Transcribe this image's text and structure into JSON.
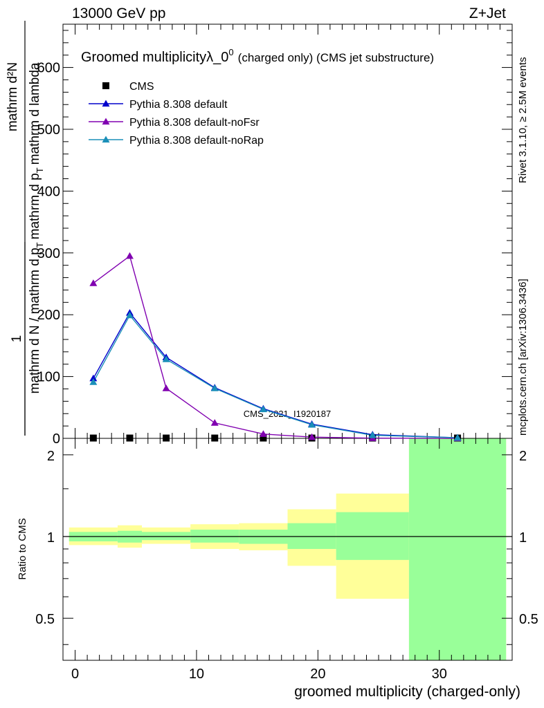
{
  "header": {
    "left": "13000 GeV pp",
    "right": "Z+Jet"
  },
  "side_labels": {
    "rivet": "Rivet 3.1.10, ≥ 2.5M events",
    "mcplots": "mcplots.cern.ch [arXiv:1306.3436]"
  },
  "chart_data": [
    {
      "type": "line",
      "title": "Groomed multiplicityλ_0",
      "title_sup": "0",
      "title_suffix": "(charged only) (CMS jet substructure)",
      "analysis_tag": "CMS_2021_I1920187",
      "ylabel_numerator": "mathrm d²N",
      "ylabel_frac_top": "1",
      "ylabel_denominator": "mathrm d N / mathrm d p_T mathrm d p_T mathrm d lambda",
      "ylabel_main": "mathrm d N / mathrm d p",
      "ylabel_sub": "T",
      "ylabel_rest": "mathrm d p",
      "ylabel_sub2": "T",
      "ylabel_tail": "mathrm d lambda",
      "xlim": [
        -1,
        36
      ],
      "ylim": [
        0,
        670
      ],
      "yticks": [
        0,
        100,
        200,
        300,
        400,
        500,
        600
      ],
      "legend_position": "top-left",
      "x": [
        1.5,
        4.5,
        7.5,
        11.5,
        15.5,
        19.5,
        24.5,
        31.5
      ],
      "series": [
        {
          "name": "CMS",
          "color": "#000000",
          "marker": "square",
          "values": [
            0.5,
            0.5,
            0.5,
            0.5,
            0.5,
            0.5,
            0.5,
            0.5
          ]
        },
        {
          "name": "Pythia 8.308 default",
          "color": "#0000cc",
          "marker": "triangle",
          "values": [
            97,
            203,
            131,
            82,
            48,
            23,
            6,
            1
          ]
        },
        {
          "name": "Pythia 8.308 default-noFsr",
          "color": "#8000b0",
          "marker": "triangle",
          "values": [
            251,
            295,
            81,
            25,
            7,
            2,
            0.3,
            0
          ]
        },
        {
          "name": "Pythia 8.308 default-noRap",
          "color": "#1a8fb8",
          "marker": "triangle",
          "values": [
            91,
            199,
            128,
            81,
            47,
            22,
            5,
            1
          ]
        }
      ]
    },
    {
      "type": "area",
      "ylabel": "Ratio to CMS",
      "xlabel": "groomed multiplicity (charged-only)",
      "xlim": [
        -1,
        36
      ],
      "ylim": [
        0.35,
        2.3
      ],
      "yscale": "log",
      "yticks": [
        0.5,
        1,
        2
      ],
      "xticks": [
        0,
        10,
        20,
        30
      ],
      "reference_line": 1,
      "bands": [
        {
          "x0": -0.5,
          "x1": 3.5,
          "green_lo": 0.96,
          "green_hi": 1.04,
          "yellow_lo": 0.93,
          "yellow_hi": 1.08
        },
        {
          "x0": 3.5,
          "x1": 5.5,
          "green_lo": 0.95,
          "green_hi": 1.05,
          "yellow_lo": 0.91,
          "yellow_hi": 1.1
        },
        {
          "x0": 5.5,
          "x1": 9.5,
          "green_lo": 0.97,
          "green_hi": 1.04,
          "yellow_lo": 0.94,
          "yellow_hi": 1.08
        },
        {
          "x0": 9.5,
          "x1": 13.5,
          "green_lo": 0.95,
          "green_hi": 1.06,
          "yellow_lo": 0.9,
          "yellow_hi": 1.11
        },
        {
          "x0": 13.5,
          "x1": 17.5,
          "green_lo": 0.94,
          "green_hi": 1.06,
          "yellow_lo": 0.89,
          "yellow_hi": 1.12
        },
        {
          "x0": 17.5,
          "x1": 21.5,
          "green_lo": 0.9,
          "green_hi": 1.12,
          "yellow_lo": 0.78,
          "yellow_hi": 1.26
        },
        {
          "x0": 21.5,
          "x1": 27.5,
          "green_lo": 0.82,
          "green_hi": 1.23,
          "yellow_lo": 0.59,
          "yellow_hi": 1.44
        },
        {
          "x0": 27.5,
          "x1": 35.5,
          "green_lo": 0.35,
          "green_hi": 2.3,
          "yellow_lo": 0.35,
          "yellow_hi": 2.3
        }
      ]
    }
  ],
  "colors": {
    "green_band": "#99ff99",
    "yellow_band": "#ffff99",
    "side_text": "#888888"
  }
}
